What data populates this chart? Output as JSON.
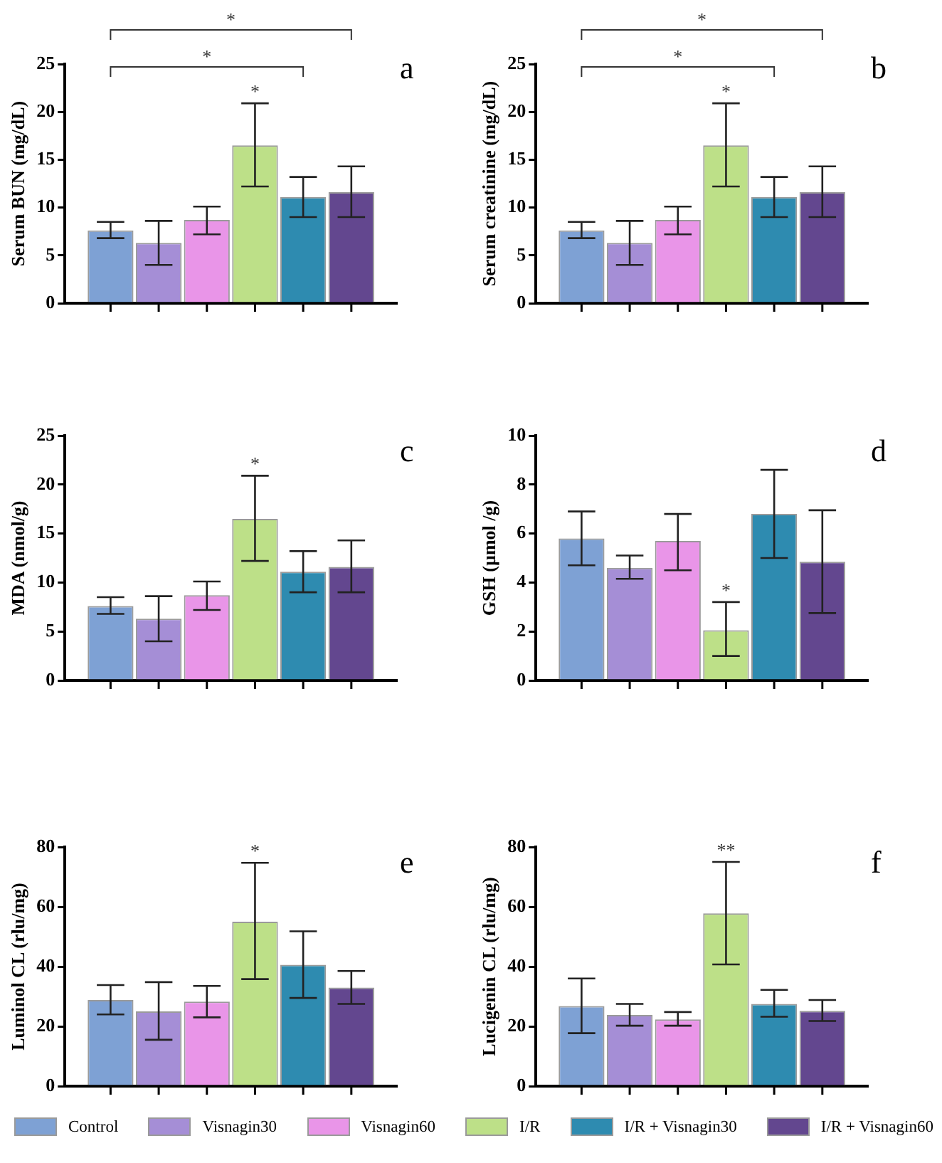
{
  "chart_data": [
    {
      "type": "bar",
      "ylabel": "Serum BUN (mg/dL)",
      "categories": [
        null
      ],
      "ylim": [
        0,
        25
      ],
      "yticks": [
        0,
        5,
        10,
        15,
        20,
        25
      ],
      "annotations": [
        "a",
        "*",
        "*",
        "*"
      ],
      "series": [
        {
          "color": "#7ea1d4",
          "values": [
            7.6
          ],
          "errors": [
            [
              6.8,
              8.5
            ]
          ]
        },
        {
          "color": "#a58ed6",
          "values": [
            6.3
          ],
          "errors": [
            [
              4.0,
              8.6
            ]
          ]
        },
        {
          "color": "#e995e8",
          "values": [
            8.7
          ],
          "errors": [
            [
              7.2,
              10.1
            ]
          ]
        },
        {
          "color": "#bde088",
          "values": [
            16.5
          ],
          "errors": [
            [
              12.2,
              20.9
            ]
          ]
        },
        {
          "color": "#2e8bb0",
          "values": [
            11.1
          ],
          "errors": [
            [
              9.0,
              13.2
            ]
          ]
        },
        {
          "color": "#63478f",
          "values": [
            11.6
          ],
          "errors": [
            [
              9.0,
              14.3
            ]
          ]
        }
      ]
    },
    {
      "type": "bar",
      "ylabel": "Serum creatinine (mg/dL)",
      "categories": [
        null
      ],
      "ylim": [
        0,
        25
      ],
      "yticks": [
        0,
        5,
        10,
        15,
        20,
        25
      ],
      "annotations": [
        "b",
        "*",
        "*",
        "*"
      ],
      "series": [
        {
          "color": "#7ea1d4",
          "values": [
            7.6
          ],
          "errors": [
            [
              6.8,
              8.5
            ]
          ]
        },
        {
          "color": "#a58ed6",
          "values": [
            6.3
          ],
          "errors": [
            [
              4.0,
              8.6
            ]
          ]
        },
        {
          "color": "#e995e8",
          "values": [
            8.7
          ],
          "errors": [
            [
              7.2,
              10.1
            ]
          ]
        },
        {
          "color": "#bde088",
          "values": [
            16.5
          ],
          "errors": [
            [
              12.2,
              20.9
            ]
          ]
        },
        {
          "color": "#2e8bb0",
          "values": [
            11.1
          ],
          "errors": [
            [
              9.0,
              13.2
            ]
          ]
        },
        {
          "color": "#63478f",
          "values": [
            11.6
          ],
          "errors": [
            [
              9.0,
              14.3
            ]
          ]
        }
      ]
    },
    {
      "type": "bar",
      "ylabel": "MDA (nmol/g)",
      "categories": [
        null
      ],
      "ylim": [
        0,
        25
      ],
      "yticks": [
        0,
        5,
        10,
        15,
        20,
        25
      ],
      "annotations": [
        "c",
        "*"
      ],
      "series": [
        {
          "color": "#7ea1d4",
          "values": [
            7.6
          ],
          "errors": [
            [
              6.8,
              8.5
            ]
          ]
        },
        {
          "color": "#a58ed6",
          "values": [
            6.3
          ],
          "errors": [
            [
              4.0,
              8.6
            ]
          ]
        },
        {
          "color": "#e995e8",
          "values": [
            8.7
          ],
          "errors": [
            [
              7.2,
              10.1
            ]
          ]
        },
        {
          "color": "#bde088",
          "values": [
            16.5
          ],
          "errors": [
            [
              12.2,
              20.9
            ]
          ]
        },
        {
          "color": "#2e8bb0",
          "values": [
            11.1
          ],
          "errors": [
            [
              9.0,
              13.2
            ]
          ]
        },
        {
          "color": "#63478f",
          "values": [
            11.6
          ],
          "errors": [
            [
              9.0,
              14.3
            ]
          ]
        }
      ]
    },
    {
      "type": "bar",
      "ylabel": "GSH (µmol /g)",
      "categories": [
        null
      ],
      "ylim": [
        0,
        10
      ],
      "yticks": [
        0,
        2,
        4,
        6,
        8,
        10
      ],
      "annotations": [
        "d",
        "*"
      ],
      "series": [
        {
          "color": "#7ea1d4",
          "values": [
            5.8
          ],
          "errors": [
            [
              4.7,
              6.9
            ]
          ]
        },
        {
          "color": "#a58ed6",
          "values": [
            4.6
          ],
          "errors": [
            [
              4.15,
              5.1
            ]
          ]
        },
        {
          "color": "#e995e8",
          "values": [
            5.7
          ],
          "errors": [
            [
              4.5,
              6.8
            ]
          ]
        },
        {
          "color": "#bde088",
          "values": [
            2.05
          ],
          "errors": [
            [
              1.0,
              3.2
            ]
          ]
        },
        {
          "color": "#2e8bb0",
          "values": [
            6.8
          ],
          "errors": [
            [
              5.0,
              8.6
            ]
          ]
        },
        {
          "color": "#63478f",
          "values": [
            4.85
          ],
          "errors": [
            [
              2.75,
              6.95
            ]
          ]
        }
      ]
    },
    {
      "type": "bar",
      "ylabel": "Luminol CL (rlu/mg)",
      "categories": [
        null
      ],
      "ylim": [
        0,
        80
      ],
      "yticks": [
        0,
        20,
        40,
        60,
        80
      ],
      "annotations": [
        "e",
        "*"
      ],
      "series": [
        {
          "color": "#7ea1d4",
          "values": [
            28.8
          ],
          "errors": [
            [
              24,
              33.8
            ]
          ]
        },
        {
          "color": "#a58ed6",
          "values": [
            25
          ],
          "errors": [
            [
              15.5,
              34.8
            ]
          ]
        },
        {
          "color": "#e995e8",
          "values": [
            28.3
          ],
          "errors": [
            [
              23,
              33.5
            ]
          ]
        },
        {
          "color": "#bde088",
          "values": [
            55
          ],
          "errors": [
            [
              35.8,
              74.7
            ]
          ]
        },
        {
          "color": "#2e8bb0",
          "values": [
            40.6
          ],
          "errors": [
            [
              29.5,
              51.8
            ]
          ]
        },
        {
          "color": "#63478f",
          "values": [
            33
          ],
          "errors": [
            [
              27.5,
              38.5
            ]
          ]
        }
      ]
    },
    {
      "type": "bar",
      "ylabel": "Lucigenin CL (rlu/mg)",
      "categories": [
        null
      ],
      "ylim": [
        0,
        80
      ],
      "yticks": [
        0,
        20,
        40,
        60,
        80
      ],
      "legend": "bottom",
      "annotations": [
        "f",
        "**"
      ],
      "series": [
        {
          "name": "Control",
          "color": "#7ea1d4",
          "values": [
            26.8
          ],
          "errors": [
            [
              17.7,
              36
            ]
          ]
        },
        {
          "name": "Visnagin30",
          "color": "#a58ed6",
          "values": [
            23.8
          ],
          "errors": [
            [
              20.2,
              27.5
            ]
          ]
        },
        {
          "name": "Visnagin60",
          "color": "#e995e8",
          "values": [
            22.3
          ],
          "errors": [
            [
              20.2,
              24.8
            ]
          ]
        },
        {
          "name": "I/R",
          "color": "#bde088",
          "values": [
            57.8
          ],
          "errors": [
            [
              40.7,
              75
            ]
          ]
        },
        {
          "name": "I/R + Visnagin30",
          "color": "#2e8bb0",
          "values": [
            27.5
          ],
          "errors": [
            [
              23.2,
              32.2
            ]
          ]
        },
        {
          "name": "I/R + Visnagin60",
          "color": "#63478f",
          "values": [
            25.2
          ],
          "errors": [
            [
              21.8,
              28.8
            ]
          ]
        }
      ]
    }
  ]
}
